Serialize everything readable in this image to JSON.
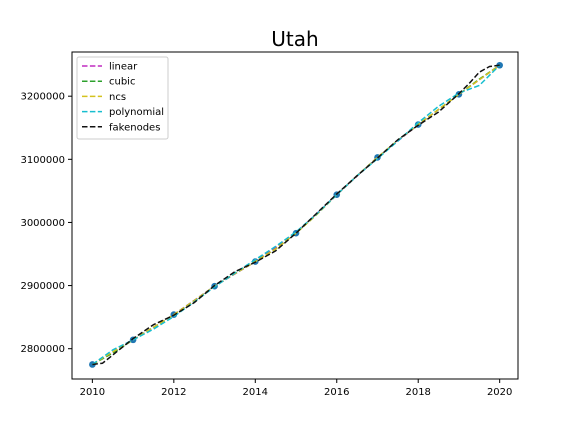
{
  "chart_data": {
    "type": "line",
    "title": "Utah",
    "xlabel": "",
    "ylabel": "",
    "xlim": [
      2009.5,
      2020.45
    ],
    "ylim": [
      2752000,
      3270000
    ],
    "x_ticks": [
      2010,
      2012,
      2014,
      2016,
      2018,
      2020
    ],
    "y_ticks": [
      2800000,
      2900000,
      3000000,
      3100000,
      3200000
    ],
    "grid": false,
    "legend_position": "upper left",
    "points": {
      "x": [
        2010,
        2011,
        2012,
        2013,
        2014,
        2015,
        2016,
        2017,
        2018,
        2019,
        2020
      ],
      "y": [
        2775000,
        2814000,
        2854000,
        2899000,
        2938000,
        2983000,
        3044000,
        3103000,
        3155000,
        3203000,
        3249000
      ],
      "color": "#1f77b4"
    },
    "series": [
      {
        "name": "linear",
        "color": "#c02cc0",
        "x": [
          2010,
          2011,
          2012,
          2013,
          2014,
          2015,
          2016,
          2017,
          2018,
          2019,
          2020
        ],
        "y": [
          2775000,
          2814000,
          2854000,
          2899000,
          2938000,
          2983000,
          3044000,
          3103000,
          3155000,
          3203000,
          3249000
        ]
      },
      {
        "name": "cubic",
        "color": "#2ca02c",
        "x": [
          2010,
          2010.5,
          2011,
          2011.5,
          2012,
          2012.5,
          2013,
          2013.5,
          2014,
          2014.5,
          2015,
          2015.5,
          2016,
          2016.5,
          2017,
          2017.5,
          2018,
          2018.5,
          2019,
          2019.5,
          2020
        ],
        "y": [
          2775000,
          2793000,
          2814000,
          2834000,
          2854000,
          2876000,
          2899000,
          2919000,
          2938000,
          2958000,
          2983000,
          3012000,
          3044000,
          3074000,
          3103000,
          3130000,
          3155000,
          3179000,
          3203000,
          3227000,
          3249000
        ]
      },
      {
        "name": "ncs",
        "color": "#d4c21e",
        "x": [
          2010,
          2010.5,
          2011,
          2011.5,
          2012,
          2012.5,
          2013,
          2013.5,
          2014,
          2014.5,
          2015,
          2015.5,
          2016,
          2016.5,
          2017,
          2017.5,
          2018,
          2018.5,
          2019,
          2019.5,
          2020
        ],
        "y": [
          2775000,
          2795000,
          2814000,
          2834000,
          2854000,
          2876000,
          2899000,
          2919000,
          2938000,
          2958000,
          2983000,
          3012000,
          3044000,
          3074000,
          3103000,
          3130000,
          3155000,
          3179000,
          3203000,
          3226000,
          3249000
        ]
      },
      {
        "name": "polynomial",
        "color": "#17becf",
        "x": [
          2010,
          2010.5,
          2011,
          2011.5,
          2012,
          2012.5,
          2013,
          2013.5,
          2014,
          2014.5,
          2015,
          2015.5,
          2016,
          2016.5,
          2017,
          2017.5,
          2018,
          2018.5,
          2019,
          2019.5,
          2020
        ],
        "y": [
          2775000,
          2798000,
          2814000,
          2831000,
          2851000,
          2874000,
          2898000,
          2920000,
          2941000,
          2962000,
          2985000,
          3013000,
          3044000,
          3074000,
          3101000,
          3129000,
          3158000,
          3184000,
          3205000,
          3217000,
          3249000
        ]
      },
      {
        "name": "fakenodes",
        "color": "#111111",
        "x": [
          2010,
          2010.25,
          2010.5,
          2011,
          2011.5,
          2012,
          2012.5,
          2013,
          2013.5,
          2014,
          2014.5,
          2015,
          2015.5,
          2016,
          2016.5,
          2017,
          2017.5,
          2018,
          2018.5,
          2019,
          2019.25,
          2019.5,
          2019.75,
          2020
        ],
        "y": [
          2775000,
          2777000,
          2790000,
          2816000,
          2838000,
          2853000,
          2873000,
          2900000,
          2922000,
          2937000,
          2955000,
          2983000,
          3014000,
          3045000,
          3074000,
          3102000,
          3131000,
          3154000,
          3175000,
          3204000,
          3220000,
          3238000,
          3247000,
          3249000
        ]
      }
    ]
  }
}
